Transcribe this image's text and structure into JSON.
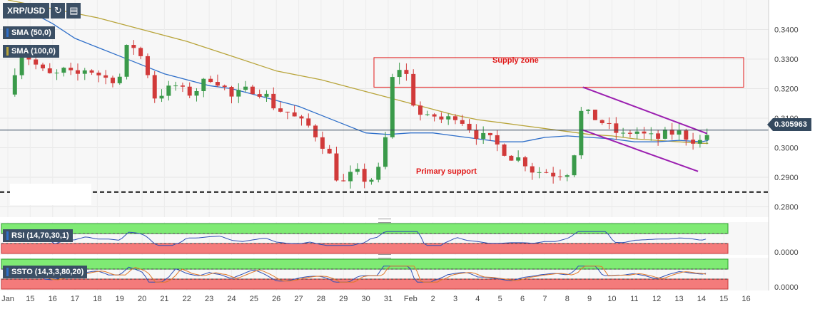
{
  "chart_data": {
    "type": "candlestick",
    "symbol": "XRP/USD",
    "indicators": [
      "SMA (50,0)",
      "SMA (100,0)"
    ],
    "x_ticks": [
      "Jan",
      "15",
      "16",
      "17",
      "18",
      "19",
      "20",
      "21",
      "22",
      "23",
      "24",
      "25",
      "26",
      "27",
      "28",
      "29",
      "30",
      "31",
      "Feb",
      "2",
      "3",
      "4",
      "5",
      "6",
      "7",
      "8",
      "9",
      "10",
      "11",
      "12",
      "13",
      "14",
      "15",
      "16"
    ],
    "y_ticks": [
      "0.3400",
      "0.3300",
      "0.3200",
      "0.3100",
      "0.3000",
      "0.2900",
      "0.2800"
    ],
    "ylim": [
      0.2765,
      0.35
    ],
    "current_price": 0.305963,
    "current_price_label": "0.305963",
    "annotations": {
      "supply_zone": {
        "label": "Supply zone",
        "from": 0.3305,
        "to": 0.3205
      },
      "primary_support": {
        "label": "Primary support",
        "level": 0.285
      }
    },
    "rsi_panel": {
      "label": "RSI (14,70,30,1)",
      "axis_label": "0.0000"
    },
    "ssto_panel": {
      "label": "SSTO (14,3,3,80,20)",
      "axis_label": "0.0000"
    },
    "series_shape": {
      "close_path": [
        [
          0,
          0.318
        ],
        [
          0.3,
          0.326
        ],
        [
          0.6,
          0.333
        ],
        [
          1,
          0.33
        ],
        [
          1.5,
          0.326
        ],
        [
          2,
          0.324
        ],
        [
          2.5,
          0.326
        ],
        [
          3,
          0.324
        ],
        [
          3.5,
          0.327
        ],
        [
          4,
          0.325
        ],
        [
          4.5,
          0.323
        ],
        [
          5,
          0.324
        ],
        [
          5.4,
          0.336
        ],
        [
          5.8,
          0.333
        ],
        [
          6.2,
          0.327
        ],
        [
          6.5,
          0.317
        ],
        [
          7,
          0.319
        ],
        [
          7.5,
          0.321
        ],
        [
          8,
          0.318
        ],
        [
          8.5,
          0.32
        ],
        [
          9,
          0.324
        ],
        [
          9.5,
          0.322
        ],
        [
          10,
          0.317
        ],
        [
          10.5,
          0.319
        ],
        [
          11,
          0.32
        ],
        [
          11.5,
          0.318
        ],
        [
          12,
          0.313
        ],
        [
          12.5,
          0.312
        ],
        [
          13,
          0.309
        ],
        [
          13.5,
          0.307
        ],
        [
          14,
          0.302
        ],
        [
          14.4,
          0.297
        ],
        [
          14.7,
          0.29
        ],
        [
          15,
          0.288
        ],
        [
          15.5,
          0.292
        ],
        [
          16,
          0.289
        ],
        [
          16.5,
          0.29
        ],
        [
          16.9,
          0.304
        ],
        [
          17.2,
          0.324
        ],
        [
          17.5,
          0.327
        ],
        [
          17.8,
          0.325
        ],
        [
          18,
          0.317
        ],
        [
          18.3,
          0.313
        ],
        [
          18.6,
          0.309
        ],
        [
          19,
          0.311
        ],
        [
          19.5,
          0.309
        ],
        [
          20,
          0.311
        ],
        [
          20.5,
          0.308
        ],
        [
          21,
          0.304
        ],
        [
          21.5,
          0.303
        ],
        [
          22,
          0.3
        ],
        [
          22.5,
          0.297
        ],
        [
          23,
          0.296
        ],
        [
          23.5,
          0.292
        ],
        [
          24,
          0.292
        ],
        [
          24.5,
          0.291
        ],
        [
          25,
          0.292
        ],
        [
          25.3,
          0.298
        ],
        [
          25.6,
          0.312
        ],
        [
          26,
          0.311
        ],
        [
          26.5,
          0.309
        ],
        [
          27,
          0.306
        ],
        [
          27.5,
          0.304
        ],
        [
          28,
          0.306
        ],
        [
          28.5,
          0.304
        ],
        [
          29,
          0.303
        ],
        [
          29.5,
          0.305
        ],
        [
          30,
          0.305
        ],
        [
          30.5,
          0.303
        ],
        [
          31,
          0.302
        ],
        [
          31.3,
          0.305
        ]
      ],
      "sma50": [
        [
          0,
          0.348
        ],
        [
          1,
          0.346
        ],
        [
          2,
          0.342
        ],
        [
          3,
          0.337
        ],
        [
          4,
          0.334
        ],
        [
          5,
          0.331
        ],
        [
          6,
          0.328
        ],
        [
          7,
          0.325
        ],
        [
          8,
          0.323
        ],
        [
          9,
          0.321
        ],
        [
          10,
          0.32
        ],
        [
          11,
          0.318
        ],
        [
          12,
          0.316
        ],
        [
          13,
          0.314
        ],
        [
          14,
          0.311
        ],
        [
          15,
          0.308
        ],
        [
          16,
          0.305
        ],
        [
          17,
          0.3045
        ],
        [
          18,
          0.305
        ],
        [
          19,
          0.305
        ],
        [
          20,
          0.304
        ],
        [
          21,
          0.303
        ],
        [
          22,
          0.302
        ],
        [
          23,
          0.302
        ],
        [
          24,
          0.3035
        ],
        [
          25,
          0.304
        ],
        [
          26,
          0.3035
        ],
        [
          27,
          0.303
        ],
        [
          28,
          0.302
        ],
        [
          29,
          0.302
        ],
        [
          30,
          0.3025
        ],
        [
          31,
          0.302
        ],
        [
          31.3,
          0.3025
        ]
      ],
      "sma100": [
        [
          0,
          0.35
        ],
        [
          2,
          0.347
        ],
        [
          4,
          0.344
        ],
        [
          6,
          0.34
        ],
        [
          8,
          0.336
        ],
        [
          10,
          0.331
        ],
        [
          12,
          0.326
        ],
        [
          14,
          0.323
        ],
        [
          16,
          0.319
        ],
        [
          17,
          0.317
        ],
        [
          18,
          0.315
        ],
        [
          19,
          0.313
        ],
        [
          20,
          0.311
        ],
        [
          21,
          0.3095
        ],
        [
          22,
          0.3085
        ],
        [
          23,
          0.3075
        ],
        [
          24,
          0.3065
        ],
        [
          25,
          0.3055
        ],
        [
          26,
          0.3045
        ],
        [
          27,
          0.304
        ],
        [
          28,
          0.303
        ],
        [
          29,
          0.3025
        ],
        [
          30,
          0.302
        ],
        [
          31,
          0.3015
        ],
        [
          31.3,
          0.3015
        ]
      ],
      "channel_upper": [
        [
          25.7,
          0.3205
        ],
        [
          31.25,
          0.3048
        ]
      ],
      "channel_lower": [
        [
          25.7,
          0.306
        ],
        [
          30.85,
          0.292
        ]
      ]
    }
  }
}
